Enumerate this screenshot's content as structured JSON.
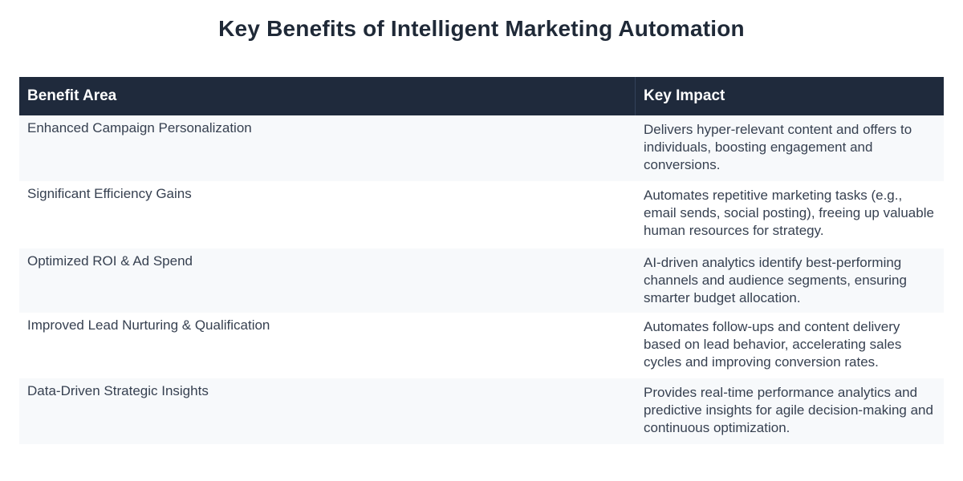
{
  "title": "Key Benefits of Intelligent Marketing Automation",
  "table": {
    "headers": [
      "Benefit Area",
      "Key Impact"
    ],
    "rows": [
      {
        "area": "Enhanced Campaign Personalization",
        "impact": "Delivers hyper-relevant content and offers to individuals, boosting engagement and conversions."
      },
      {
        "area": "Significant Efficiency Gains",
        "impact": "Automates repetitive marketing tasks (e.g., email sends, social posting), freeing up valuable human resources for strategy."
      },
      {
        "area": "Optimized ROI & Ad Spend",
        "impact": "AI-driven analytics identify best-performing channels and audience segments, ensuring smarter budget allocation."
      },
      {
        "area": "Improved Lead Nurturing & Qualification",
        "impact": "Automates follow-ups and content delivery based on lead behavior, accelerating sales cycles and improving conversion rates."
      },
      {
        "area": "Data-Driven Strategic Insights",
        "impact": "Provides real-time performance analytics and predictive insights for agile decision-making and continuous optimization."
      }
    ]
  }
}
